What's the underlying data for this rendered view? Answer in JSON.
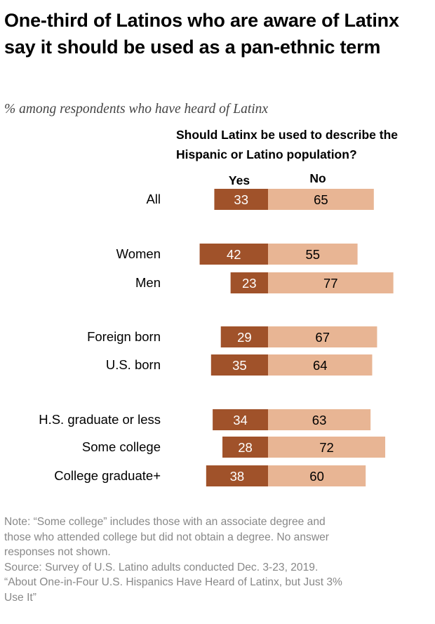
{
  "title": "One-third of Latinos who are aware of Latinx say it should be used as a pan-ethnic term",
  "subtitle": "% among respondents who have heard of Latinx",
  "question": "Should Latinx be used to describe the Hispanic or Latino population?",
  "notes": [
    "Note: “Some college” includes those with an associate degree and",
    "those who attended college but did not obtain a degree. No answer",
    "responses not shown.",
    "Source: Survey of U.S. Latino adults conducted Dec. 3-23, 2019.",
    "“About One-in-Four U.S. Hispanics Have Heard of Latinx, but Just 3%",
    "Use It”"
  ],
  "colors": {
    "yes": "#A0522A",
    "no": "#E8B594",
    "yes_text": "#ffffff",
    "no_text": "#000000"
  },
  "chart_data": {
    "type": "bar",
    "orientation": "horizontal-diverging",
    "series_labels": [
      "Yes",
      "No"
    ],
    "categories": [
      "All",
      "Women",
      "Men",
      "Foreign born",
      "U.S. born",
      "H.S. graduate or less",
      "Some college",
      "College graduate+"
    ],
    "groups": [
      [
        0
      ],
      [
        1,
        2
      ],
      [
        3,
        4
      ],
      [
        5,
        6,
        7
      ]
    ],
    "series": [
      {
        "name": "Yes",
        "values": [
          33,
          42,
          23,
          29,
          35,
          34,
          28,
          38
        ]
      },
      {
        "name": "No",
        "values": [
          65,
          55,
          77,
          67,
          64,
          63,
          72,
          60
        ]
      }
    ]
  }
}
